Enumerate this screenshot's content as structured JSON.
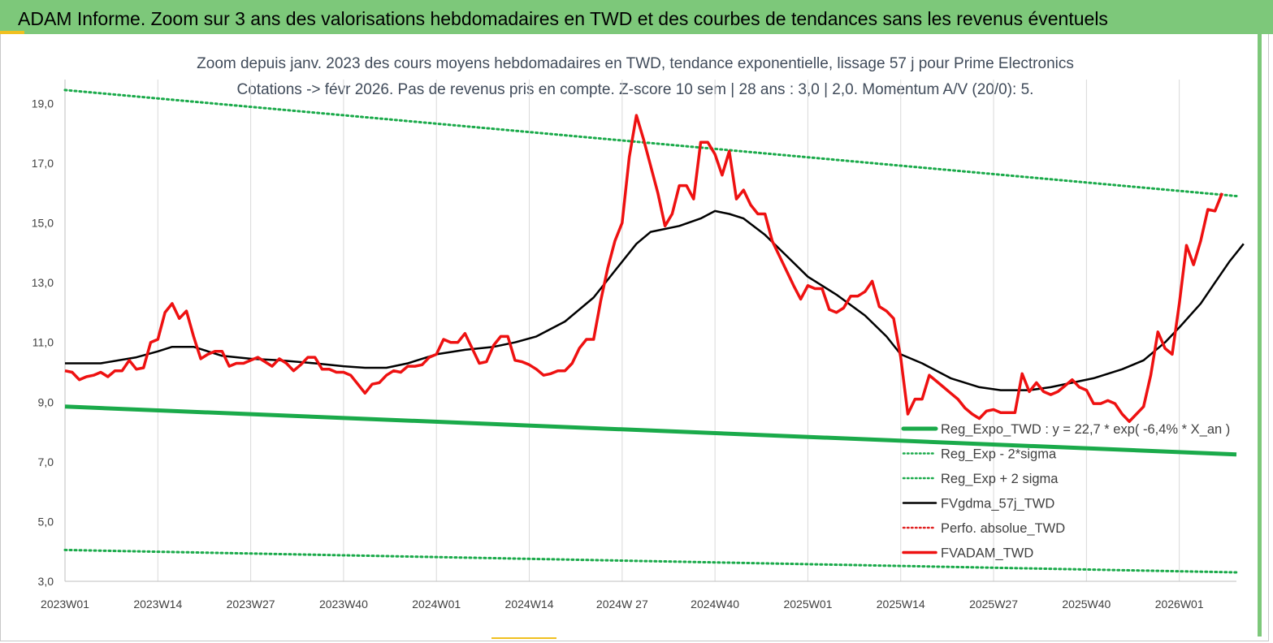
{
  "header": {
    "title": "ADAM Informe. Zoom sur 3 ans des valorisations hebdomadaires en TWD et des courbes de tendances sans les revenus éventuels"
  },
  "chart_data": {
    "type": "line",
    "title_line1": "Zoom depuis janv. 2023 des cours moyens hebdomadaires en TWD, tendance exponentielle, lissage 57 j pour Prime Electronics",
    "title_line2": "Cotations -> févr 2026. Pas de revenus pris en compte. Z-score 10 sem | 28 ans : 3,0 | 2,0. Momentum A/V (20/0): 5.",
    "ylim": [
      3,
      19.8
    ],
    "yticks": [
      "3,0",
      "5,0",
      "7,0",
      "9,0",
      "11,0",
      "13,0",
      "15,0",
      "17,0",
      "19,0"
    ],
    "ytick_values": [
      3,
      5,
      7,
      9,
      11,
      13,
      15,
      17,
      19
    ],
    "x_range": [
      0,
      164
    ],
    "xticks": [
      "2023W01",
      "2023W14",
      "2023W27",
      "2023W40",
      "2024W01",
      "2024W14",
      "2024W 27",
      "2024W40",
      "2025W01",
      "2025W14",
      "2025W27",
      "2025W40",
      "2026W01"
    ],
    "xtick_values": [
      0,
      13,
      26,
      39,
      52,
      65,
      78,
      91,
      104,
      117,
      130,
      143,
      156
    ],
    "grid": "vertical",
    "legend_position": "bottom-right",
    "series": [
      {
        "name": "Reg_Expo_TWD : y = 22,7 * exp( -6,4% *  X_an )",
        "color": "#1aaa4a",
        "style": "solid-thick",
        "points": [
          [
            0,
            8.85
          ],
          [
            164,
            7.25
          ]
        ]
      },
      {
        "name": "Reg_Exp - 2*sigma",
        "color": "#1aaa4a",
        "style": "dotted",
        "points": [
          [
            0,
            4.05
          ],
          [
            164,
            3.3
          ]
        ]
      },
      {
        "name": "Reg_Exp + 2 sigma",
        "color": "#1aaa4a",
        "style": "dotted",
        "points": [
          [
            0,
            19.45
          ],
          [
            164,
            15.9
          ]
        ]
      },
      {
        "name": "FVgdma_57j_TWD",
        "color": "#000000",
        "style": "solid",
        "points": [
          [
            0,
            10.3
          ],
          [
            5,
            10.3
          ],
          [
            10,
            10.5
          ],
          [
            13,
            10.7
          ],
          [
            15,
            10.85
          ],
          [
            18,
            10.85
          ],
          [
            22,
            10.55
          ],
          [
            26,
            10.45
          ],
          [
            30,
            10.4
          ],
          [
            35,
            10.3
          ],
          [
            39,
            10.2
          ],
          [
            42,
            10.15
          ],
          [
            45,
            10.15
          ],
          [
            48,
            10.3
          ],
          [
            52,
            10.6
          ],
          [
            56,
            10.75
          ],
          [
            60,
            10.85
          ],
          [
            63,
            11.0
          ],
          [
            66,
            11.2
          ],
          [
            70,
            11.7
          ],
          [
            74,
            12.5
          ],
          [
            77,
            13.4
          ],
          [
            80,
            14.3
          ],
          [
            82,
            14.7
          ],
          [
            86,
            14.9
          ],
          [
            89,
            15.15
          ],
          [
            91,
            15.4
          ],
          [
            93,
            15.3
          ],
          [
            95,
            15.15
          ],
          [
            98,
            14.6
          ],
          [
            101,
            13.9
          ],
          [
            104,
            13.2
          ],
          [
            108,
            12.6
          ],
          [
            112,
            11.9
          ],
          [
            115,
            11.2
          ],
          [
            117,
            10.6
          ],
          [
            120,
            10.3
          ],
          [
            124,
            9.8
          ],
          [
            128,
            9.5
          ],
          [
            131,
            9.4
          ],
          [
            135,
            9.4
          ],
          [
            138,
            9.5
          ],
          [
            141,
            9.65
          ],
          [
            144,
            9.8
          ],
          [
            148,
            10.1
          ],
          [
            151,
            10.4
          ],
          [
            154,
            11.0
          ],
          [
            156,
            11.5
          ],
          [
            159,
            12.3
          ],
          [
            161,
            13.0
          ],
          [
            163,
            13.7
          ],
          [
            165,
            14.3
          ]
        ]
      },
      {
        "name": "Perfo. absolue_TWD",
        "color": "#e02020",
        "style": "dotted",
        "points": []
      },
      {
        "name": "FVADAM_TWD",
        "color": "#ee1111",
        "style": "solid-thick",
        "points": [
          [
            0,
            10.05
          ],
          [
            1,
            10.0
          ],
          [
            2,
            9.75
          ],
          [
            3,
            9.85
          ],
          [
            4,
            9.9
          ],
          [
            5,
            10.0
          ],
          [
            6,
            9.85
          ],
          [
            7,
            10.05
          ],
          [
            8,
            10.05
          ],
          [
            9,
            10.4
          ],
          [
            10,
            10.1
          ],
          [
            11,
            10.15
          ],
          [
            12,
            11.0
          ],
          [
            13,
            11.1
          ],
          [
            14,
            12.0
          ],
          [
            15,
            12.3
          ],
          [
            16,
            11.8
          ],
          [
            17,
            12.05
          ],
          [
            18,
            11.2
          ],
          [
            19,
            10.45
          ],
          [
            20,
            10.6
          ],
          [
            21,
            10.7
          ],
          [
            22,
            10.7
          ],
          [
            23,
            10.2
          ],
          [
            24,
            10.3
          ],
          [
            25,
            10.3
          ],
          [
            26,
            10.4
          ],
          [
            27,
            10.5
          ],
          [
            28,
            10.35
          ],
          [
            29,
            10.2
          ],
          [
            30,
            10.45
          ],
          [
            31,
            10.3
          ],
          [
            32,
            10.05
          ],
          [
            33,
            10.25
          ],
          [
            34,
            10.5
          ],
          [
            35,
            10.5
          ],
          [
            36,
            10.1
          ],
          [
            37,
            10.1
          ],
          [
            38,
            10.0
          ],
          [
            39,
            10.0
          ],
          [
            40,
            9.9
          ],
          [
            41,
            9.6
          ],
          [
            42,
            9.3
          ],
          [
            43,
            9.6
          ],
          [
            44,
            9.65
          ],
          [
            45,
            9.9
          ],
          [
            46,
            10.05
          ],
          [
            47,
            10.0
          ],
          [
            48,
            10.2
          ],
          [
            49,
            10.2
          ],
          [
            50,
            10.25
          ],
          [
            51,
            10.5
          ],
          [
            52,
            10.6
          ],
          [
            53,
            11.1
          ],
          [
            54,
            11.0
          ],
          [
            55,
            11.0
          ],
          [
            56,
            11.3
          ],
          [
            57,
            10.8
          ],
          [
            58,
            10.3
          ],
          [
            59,
            10.35
          ],
          [
            60,
            10.9
          ],
          [
            61,
            11.2
          ],
          [
            62,
            11.2
          ],
          [
            63,
            10.4
          ],
          [
            64,
            10.35
          ],
          [
            65,
            10.25
          ],
          [
            66,
            10.1
          ],
          [
            67,
            9.9
          ],
          [
            68,
            9.95
          ],
          [
            69,
            10.05
          ],
          [
            70,
            10.05
          ],
          [
            71,
            10.3
          ],
          [
            72,
            10.8
          ],
          [
            73,
            11.1
          ],
          [
            74,
            11.1
          ],
          [
            75,
            12.4
          ],
          [
            76,
            13.5
          ],
          [
            77,
            14.4
          ],
          [
            78,
            15.0
          ],
          [
            79,
            17.2
          ],
          [
            80,
            18.6
          ],
          [
            81,
            17.8
          ],
          [
            82,
            16.9
          ],
          [
            83,
            16.0
          ],
          [
            84,
            14.9
          ],
          [
            85,
            15.3
          ],
          [
            86,
            16.25
          ],
          [
            87,
            16.25
          ],
          [
            88,
            15.8
          ],
          [
            89,
            17.7
          ],
          [
            90,
            17.7
          ],
          [
            91,
            17.3
          ],
          [
            92,
            16.6
          ],
          [
            93,
            17.4
          ],
          [
            94,
            15.8
          ],
          [
            95,
            16.1
          ],
          [
            96,
            15.6
          ],
          [
            97,
            15.3
          ],
          [
            98,
            15.3
          ],
          [
            99,
            14.4
          ],
          [
            100,
            13.9
          ],
          [
            101,
            13.4
          ],
          [
            102,
            12.9
          ],
          [
            103,
            12.45
          ],
          [
            104,
            12.9
          ],
          [
            105,
            12.8
          ],
          [
            106,
            12.8
          ],
          [
            107,
            12.1
          ],
          [
            108,
            12.0
          ],
          [
            109,
            12.15
          ],
          [
            110,
            12.55
          ],
          [
            111,
            12.55
          ],
          [
            112,
            12.7
          ],
          [
            113,
            13.05
          ],
          [
            114,
            12.2
          ],
          [
            115,
            12.05
          ],
          [
            116,
            11.8
          ],
          [
            117,
            10.5
          ],
          [
            118,
            8.6
          ],
          [
            119,
            9.1
          ],
          [
            120,
            9.1
          ],
          [
            121,
            9.9
          ],
          [
            122,
            9.7
          ],
          [
            123,
            9.5
          ],
          [
            124,
            9.3
          ],
          [
            125,
            9.1
          ],
          [
            126,
            8.8
          ],
          [
            127,
            8.6
          ],
          [
            128,
            8.45
          ],
          [
            129,
            8.7
          ],
          [
            130,
            8.75
          ],
          [
            131,
            8.65
          ],
          [
            132,
            8.65
          ],
          [
            133,
            8.65
          ],
          [
            134,
            9.95
          ],
          [
            135,
            9.35
          ],
          [
            136,
            9.65
          ],
          [
            137,
            9.35
          ],
          [
            138,
            9.25
          ],
          [
            139,
            9.35
          ],
          [
            140,
            9.55
          ],
          [
            141,
            9.75
          ],
          [
            142,
            9.5
          ],
          [
            143,
            9.4
          ],
          [
            144,
            8.95
          ],
          [
            145,
            8.95
          ],
          [
            146,
            9.05
          ],
          [
            147,
            8.95
          ],
          [
            148,
            8.6
          ],
          [
            149,
            8.35
          ],
          [
            150,
            8.6
          ],
          [
            151,
            8.85
          ],
          [
            152,
            9.9
          ],
          [
            153,
            11.35
          ],
          [
            154,
            10.8
          ],
          [
            155,
            10.6
          ],
          [
            156,
            12.3
          ],
          [
            157,
            14.25
          ],
          [
            158,
            13.6
          ],
          [
            159,
            14.4
          ],
          [
            160,
            15.45
          ],
          [
            161,
            15.4
          ],
          [
            162,
            16.0
          ]
        ]
      }
    ]
  }
}
